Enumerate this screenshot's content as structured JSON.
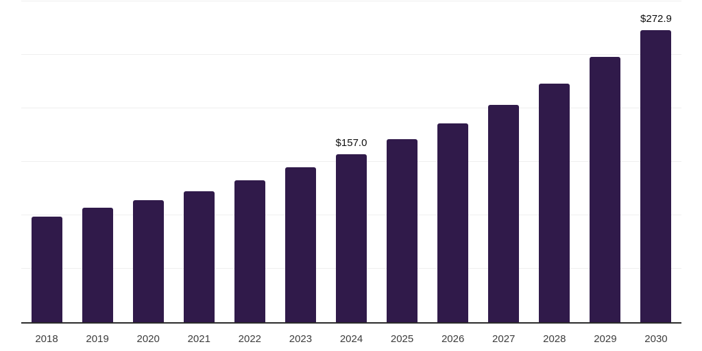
{
  "chart_data": {
    "type": "bar",
    "title": "",
    "xlabel": "",
    "ylabel": "",
    "categories": [
      "2018",
      "2019",
      "2020",
      "2021",
      "2022",
      "2023",
      "2024",
      "2025",
      "2026",
      "2027",
      "2028",
      "2029",
      "2030"
    ],
    "values": [
      99,
      107,
      114,
      122.5,
      133,
      145,
      157.0,
      171,
      186,
      203,
      223,
      248,
      272.9
    ],
    "value_labels": {
      "2024": "$157.0",
      "2030": "$272.9"
    },
    "ylim": [
      0,
      300
    ],
    "gridline_interval": 50,
    "grid": true,
    "legend": false,
    "y_axis_tick_labels_visible": false,
    "colors": {
      "bar": "#301a4a",
      "axis_line": "#2b2b2b",
      "gridline": "#efefef",
      "tick_label": "#3c3c3c",
      "value_label": "#0d0d0d",
      "background": "#ffffff"
    }
  }
}
